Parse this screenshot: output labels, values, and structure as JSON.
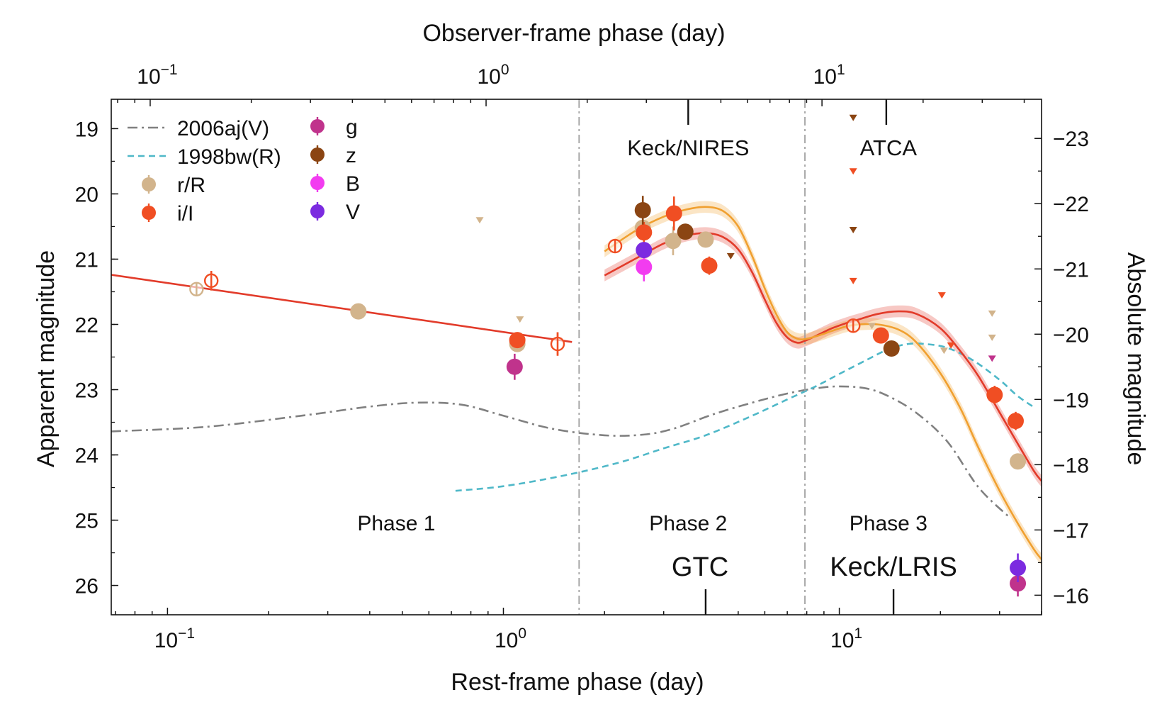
{
  "chart_data": {
    "type": "scatter",
    "x_scale": "log",
    "y_reversed": true,
    "xlim": [
      0.068,
      40
    ],
    "ylim": [
      26.45,
      18.55
    ],
    "xlabel": "Rest-frame phase (day)",
    "ylabel": "Apparent magnitude",
    "top_xlabel": "Observer-frame phase (day)",
    "right_ylabel": "Absolute magnitude",
    "x_ticks": [
      {
        "v": 0.1,
        "b": "10",
        "e": "−1"
      },
      {
        "v": 1,
        "b": "10",
        "e": "0"
      },
      {
        "v": 10,
        "b": "10",
        "e": "1"
      }
    ],
    "top_ticks": [
      {
        "v": 0.0888,
        "b": "10",
        "e": "−1"
      },
      {
        "v": 0.888,
        "b": "10",
        "e": "0"
      },
      {
        "v": 8.88,
        "b": "10",
        "e": "1"
      }
    ],
    "y_ticks": [
      19,
      20,
      21,
      22,
      23,
      24,
      25,
      26
    ],
    "right_ticks": [
      {
        "label": "−23",
        "y": 19.15
      },
      {
        "label": "−22",
        "y": 20.15
      },
      {
        "label": "−21",
        "y": 21.15
      },
      {
        "label": "−20",
        "y": 22.15
      },
      {
        "label": "−19",
        "y": 23.15
      },
      {
        "label": "−18",
        "y": 24.15
      },
      {
        "label": "−17",
        "y": 25.15
      },
      {
        "label": "−16",
        "y": 26.15
      }
    ],
    "colors": {
      "rR": "#d2b48c",
      "iI": "#f04e23",
      "g": "#c0338c",
      "z": "#8b4513",
      "B": "#f23cf0",
      "V": "#7b2be0",
      "fit_red": "#e23b2a",
      "fit_orange": "#f0a030",
      "sn2006aj": "#808080",
      "sn1998bw": "#4fb8c8",
      "divider": "#a0a0a0"
    },
    "legend": [
      {
        "label": "2006aj(V)",
        "kind": "dashdot",
        "color": "#808080"
      },
      {
        "label": "1998bw(R)",
        "kind": "dash",
        "color": "#4fb8c8"
      },
      {
        "label": "r/R",
        "kind": "marker",
        "color": "#d2b48c"
      },
      {
        "label": "i/I",
        "kind": "marker",
        "color": "#f04e23"
      },
      {
        "label": "g",
        "kind": "marker",
        "color": "#c0338c"
      },
      {
        "label": "z",
        "kind": "marker",
        "color": "#8b4513"
      },
      {
        "label": "B",
        "kind": "marker",
        "color": "#f23cf0"
      },
      {
        "label": "V",
        "kind": "marker",
        "color": "#7b2be0"
      }
    ],
    "dividers": [
      1.68,
      7.9
    ],
    "phases": [
      {
        "label": "Phase 1",
        "x": 0.48,
        "y": 25.05
      },
      {
        "label": "Phase 2",
        "x": 3.55,
        "y": 25.05
      },
      {
        "label": "Phase 3",
        "x": 14.0,
        "y": 25.05
      }
    ],
    "instruments": [
      {
        "label": "Keck/NIRES",
        "x": 3.55,
        "y": 19.3,
        "tick_x": 3.55,
        "tick_side": "top"
      },
      {
        "label": "ATCA",
        "x": 14.0,
        "y": 19.3,
        "tick_x": 13.8,
        "tick_side": "top"
      },
      {
        "label": "GTC",
        "x": 3.85,
        "y": 25.7,
        "tick_x": 4.0,
        "tick_side": "bottom"
      },
      {
        "label": "Keck/LRIS",
        "x": 14.5,
        "y": 25.7,
        "tick_x": 14.5,
        "tick_side": "bottom"
      }
    ],
    "series": [
      {
        "name": "2006aj(V)",
        "kind": "line",
        "style": "dashdot",
        "color": "#808080",
        "x": [
          0.068,
          0.13,
          0.25,
          0.4,
          0.55,
          0.75,
          1.0,
          1.4,
          2.0,
          2.6,
          3.2,
          4.2,
          5.5,
          7.0,
          8.5,
          10.0,
          12.0,
          14.0,
          17.0,
          21.0,
          26.0,
          32.0
        ],
        "y": [
          23.64,
          23.57,
          23.4,
          23.26,
          23.2,
          23.23,
          23.4,
          23.6,
          23.7,
          23.69,
          23.6,
          23.38,
          23.2,
          23.06,
          22.98,
          22.95,
          22.98,
          23.1,
          23.36,
          23.8,
          24.5,
          24.95
        ]
      },
      {
        "name": "1998bw(R)",
        "kind": "line",
        "style": "dash",
        "color": "#4fb8c8",
        "x": [
          0.72,
          1.0,
          1.5,
          2.2,
          3.0,
          4.0,
          5.5,
          7.0,
          8.5,
          10.0,
          12.0,
          14.0,
          16.0,
          18.0,
          21.0,
          25.0,
          30.0,
          34.0,
          38.0
        ],
        "y": [
          24.55,
          24.48,
          24.32,
          24.12,
          23.9,
          23.7,
          23.4,
          23.15,
          22.95,
          22.76,
          22.55,
          22.38,
          22.3,
          22.3,
          22.36,
          22.55,
          22.85,
          23.1,
          23.27
        ]
      },
      {
        "name": "Phase 1 fit",
        "kind": "line",
        "style": "solid",
        "color": "#e23b2a",
        "x": [
          0.068,
          1.6
        ],
        "y": [
          21.24,
          22.27
        ]
      },
      {
        "name": "red fit",
        "kind": "band",
        "color": "#e23b2a",
        "x": [
          2.0,
          2.5,
          3.0,
          3.5,
          4.0,
          4.5,
          5.0,
          5.5,
          6.0,
          6.5,
          7.0,
          7.5,
          8.0,
          8.8,
          9.5,
          10.5,
          11.5,
          13.0,
          15.0,
          17.0,
          20.0,
          23.0,
          26.0,
          30.0,
          34.0,
          38.0,
          40.0
        ],
        "y": [
          21.25,
          20.98,
          20.76,
          20.64,
          20.6,
          20.66,
          20.85,
          21.2,
          21.62,
          21.98,
          22.2,
          22.28,
          22.24,
          22.14,
          22.06,
          21.98,
          21.92,
          21.84,
          21.8,
          21.84,
          22.06,
          22.42,
          22.8,
          23.35,
          23.83,
          24.25,
          24.4
        ]
      },
      {
        "name": "orange fit",
        "kind": "band",
        "color": "#f0a030",
        "x": [
          2.0,
          2.5,
          3.0,
          3.5,
          4.0,
          4.5,
          5.0,
          5.5,
          6.0,
          6.5,
          7.0,
          7.5,
          8.0,
          8.8,
          9.5,
          10.5,
          11.5,
          13.0,
          15.0,
          17.0,
          20.0,
          23.0,
          26.0,
          30.0,
          34.0,
          38.0,
          40.0
        ],
        "y": [
          20.88,
          20.55,
          20.35,
          20.24,
          20.2,
          20.26,
          20.5,
          20.95,
          21.45,
          21.85,
          22.12,
          22.22,
          22.22,
          22.16,
          22.1,
          22.03,
          22.0,
          22.0,
          22.08,
          22.28,
          22.75,
          23.3,
          23.9,
          24.55,
          25.05,
          25.45,
          25.6
        ]
      },
      {
        "name": "r/R",
        "kind": "points",
        "color": "#d2b48c",
        "points": [
          {
            "x": 0.122,
            "y": 21.46,
            "err": 0.1,
            "open": true
          },
          {
            "x": 0.37,
            "y": 21.8,
            "err": 0.08
          },
          {
            "x": 1.1,
            "y": 22.3,
            "err": 0.12
          },
          {
            "x": 2.6,
            "y": 20.52,
            "err": 0.12
          },
          {
            "x": 3.2,
            "y": 20.72,
            "err": 0.22
          },
          {
            "x": 4.0,
            "y": 20.7,
            "err": 0.12
          },
          {
            "x": 34.0,
            "y": 24.1,
            "err": 0.08
          }
        ]
      },
      {
        "name": "i/I",
        "kind": "points",
        "color": "#f04e23",
        "points": [
          {
            "x": 0.135,
            "y": 21.33,
            "err": 0.15,
            "open": true
          },
          {
            "x": 1.1,
            "y": 22.24,
            "err": 0.12
          },
          {
            "x": 1.45,
            "y": 22.3,
            "err": 0.18,
            "open": true
          },
          {
            "x": 2.15,
            "y": 20.8,
            "err": 0.1,
            "open": true
          },
          {
            "x": 2.62,
            "y": 20.59,
            "err": 0.16
          },
          {
            "x": 3.22,
            "y": 20.3,
            "err": 0.26
          },
          {
            "x": 4.1,
            "y": 21.1,
            "err": 0.14
          },
          {
            "x": 11.0,
            "y": 22.02,
            "err": 0.1,
            "open": true
          },
          {
            "x": 13.3,
            "y": 22.17,
            "err": 0.12
          },
          {
            "x": 29.0,
            "y": 23.08,
            "err": 0.14
          },
          {
            "x": 33.5,
            "y": 23.48,
            "err": 0.14
          }
        ]
      },
      {
        "name": "g",
        "kind": "points",
        "color": "#c0338c",
        "points": [
          {
            "x": 1.08,
            "y": 22.65,
            "err": 0.2
          },
          {
            "x": 34.0,
            "y": 25.97,
            "err": 0.2
          }
        ]
      },
      {
        "name": "z",
        "kind": "points",
        "color": "#8b4513",
        "points": [
          {
            "x": 2.6,
            "y": 20.25,
            "err": 0.22
          },
          {
            "x": 3.48,
            "y": 20.58,
            "err": 0.12
          },
          {
            "x": 14.3,
            "y": 22.37,
            "err": 0.1
          }
        ]
      },
      {
        "name": "B",
        "kind": "points",
        "color": "#f23cf0",
        "points": [
          {
            "x": 2.62,
            "y": 21.12,
            "err": 0.22
          }
        ]
      },
      {
        "name": "V",
        "kind": "points",
        "color": "#7b2be0",
        "points": [
          {
            "x": 2.62,
            "y": 20.86,
            "err": 0.1
          },
          {
            "x": 34.0,
            "y": 25.73,
            "err": 0.22
          }
        ]
      },
      {
        "name": "upper limits",
        "kind": "limits",
        "points": [
          {
            "x": 0.85,
            "y": 20.4,
            "color": "#d2b48c"
          },
          {
            "x": 1.12,
            "y": 21.92,
            "color": "#d2b48c"
          },
          {
            "x": 4.75,
            "y": 20.95,
            "color": "#8b4513"
          },
          {
            "x": 11.0,
            "y": 18.83,
            "color": "#8b4513"
          },
          {
            "x": 11.0,
            "y": 19.65,
            "color": "#f04e23"
          },
          {
            "x": 11.0,
            "y": 20.55,
            "color": "#8b4513"
          },
          {
            "x": 11.0,
            "y": 21.33,
            "color": "#f04e23"
          },
          {
            "x": 12.5,
            "y": 22.02,
            "color": "#d2b48c"
          },
          {
            "x": 20.2,
            "y": 21.55,
            "color": "#f04e23"
          },
          {
            "x": 20.5,
            "y": 22.4,
            "color": "#d2b48c"
          },
          {
            "x": 21.5,
            "y": 22.32,
            "color": "#f04e23"
          },
          {
            "x": 28.5,
            "y": 21.83,
            "color": "#d2b48c"
          },
          {
            "x": 28.5,
            "y": 22.2,
            "color": "#d2b48c"
          },
          {
            "x": 28.5,
            "y": 22.52,
            "color": "#c0338c"
          }
        ]
      }
    ]
  }
}
